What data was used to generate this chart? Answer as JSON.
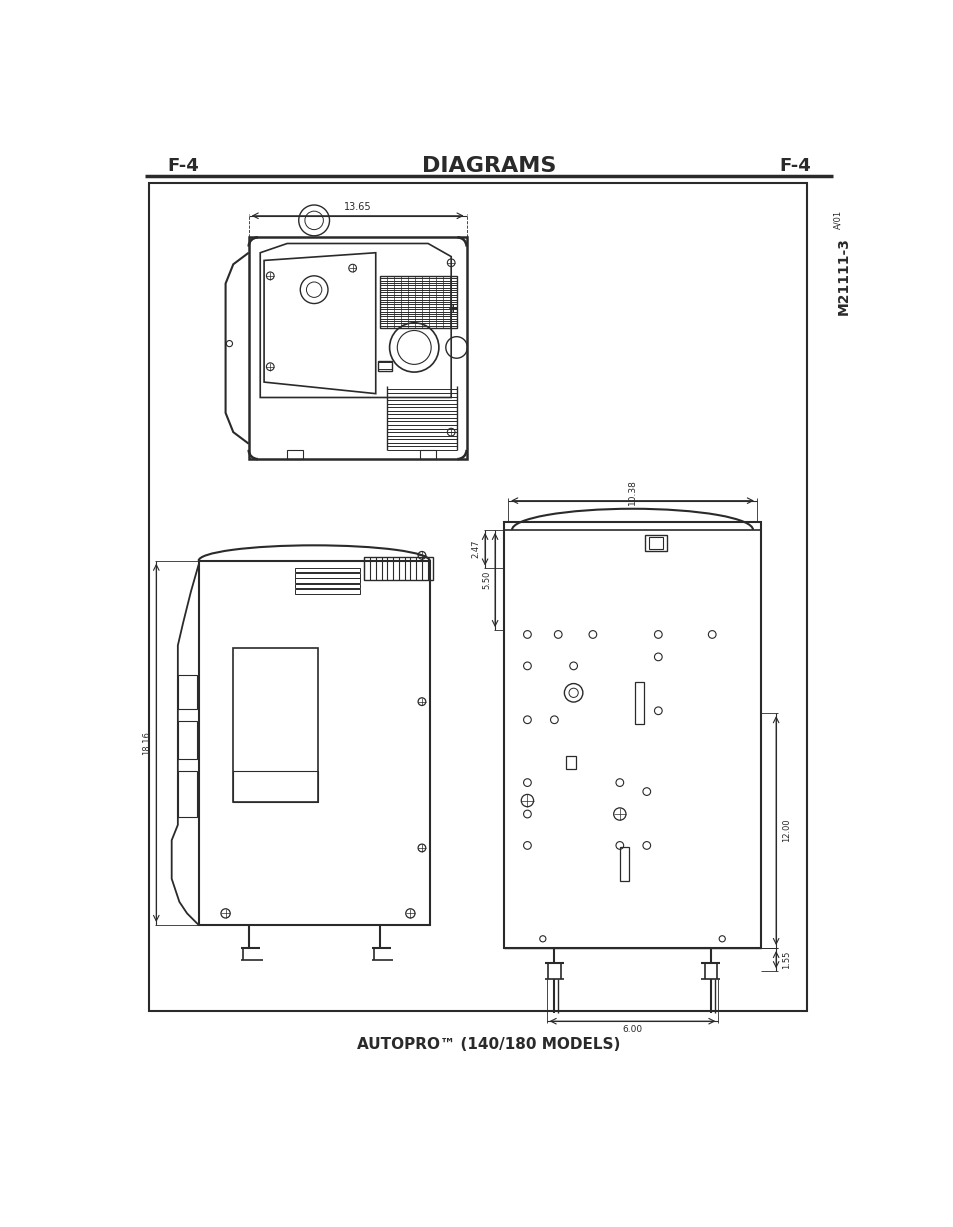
{
  "title": "DIAGRAMS",
  "left_label": "F-4",
  "right_label": "F-4",
  "bottom_text": "AUTOPRO™ (140/180 MODELS)",
  "side_label": "M21111-3",
  "side_sublabel": "A/01",
  "bg_color": "#ffffff",
  "line_color": "#2a2a2a",
  "dim_color": "#2a2a2a",
  "top_dim": "13.65",
  "dim_247": "2.47",
  "dim_550": "5.50",
  "dim_1038": "10.38",
  "dim_1816": "18.16",
  "dim_1200": "12.00",
  "dim_155": "1.55",
  "dim_600": "6.00"
}
